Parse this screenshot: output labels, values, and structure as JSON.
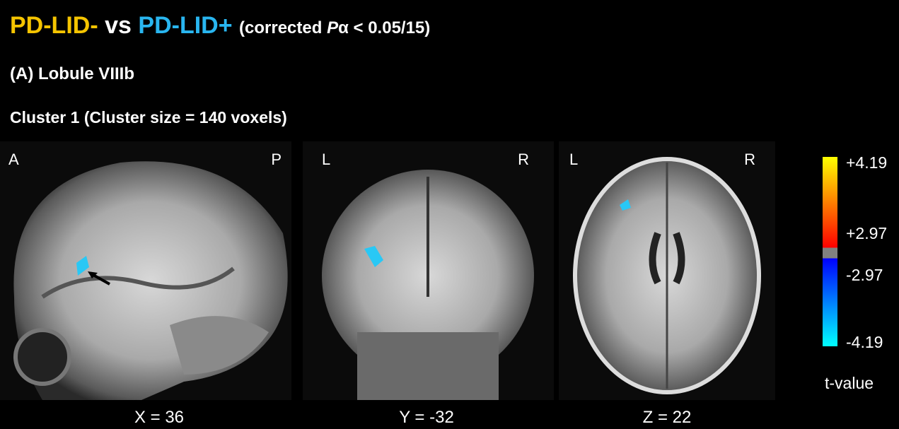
{
  "header": {
    "group1": "PD-LID-",
    "vs": "vs",
    "group2": "PD-LID+",
    "note_open": "(corrected ",
    "note_p": "P",
    "note_rest": "α < 0.05/15)"
  },
  "section": "(A) Lobule VIIIb",
  "cluster": "Cluster 1 (Cluster size = 140 voxels)",
  "panels": [
    {
      "left": "A",
      "right": "P",
      "coordinate": "X = 36"
    },
    {
      "left": "L",
      "right": "R",
      "coordinate": "Y = -32"
    },
    {
      "left": "L",
      "right": "R",
      "coordinate": "Z = 22"
    }
  ],
  "colorbar": {
    "ticks": [
      "+4.19",
      "+2.97",
      "-2.97",
      "-4.19"
    ],
    "label": "t-value"
  }
}
